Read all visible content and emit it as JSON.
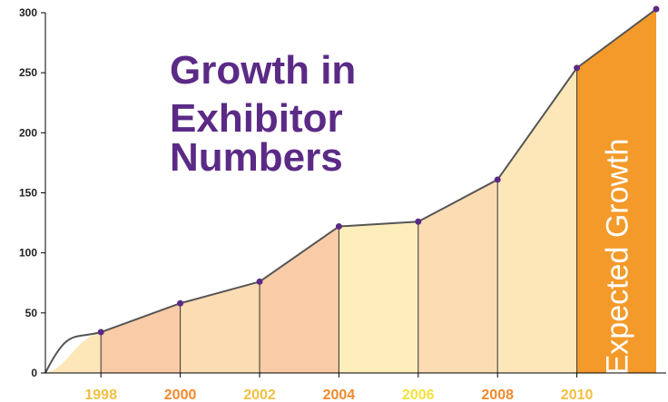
{
  "chart_data": {
    "type": "area",
    "title_lines": [
      "Growth in",
      "Exhibitor",
      "Numbers"
    ],
    "xlabel": "",
    "ylabel": "",
    "ylim": [
      0,
      300
    ],
    "y_ticks": [
      0,
      50,
      100,
      150,
      200,
      250,
      300
    ],
    "x_tick_labels": [
      "1998",
      "2000",
      "2002",
      "2004",
      "2006",
      "2008",
      "2010"
    ],
    "x_tick_colors": [
      "#f2c043",
      "#ef8a2e",
      "#f2c043",
      "#ef8a2e",
      "#f6e03a",
      "#ef8a2e",
      "#f2c043"
    ],
    "x": [
      1996.6,
      1998,
      2000,
      2002,
      2004,
      2006,
      2008,
      2010,
      2012
    ],
    "values": [
      0,
      34,
      58,
      76,
      122,
      126,
      161,
      254,
      303
    ],
    "band_colors": [
      "#fde7b9",
      "#f9cba7",
      "#fbdcb3",
      "#f9cba7",
      "#fdeebc",
      "#fbdcb3",
      "#fde7b9"
    ],
    "line_color": "#555555",
    "point_color": "#5b2a86",
    "expected_band": {
      "label": "Expected Growth",
      "from_x": 2010,
      "to_x": 2012,
      "color": "#f39a2a"
    },
    "grid": false
  }
}
